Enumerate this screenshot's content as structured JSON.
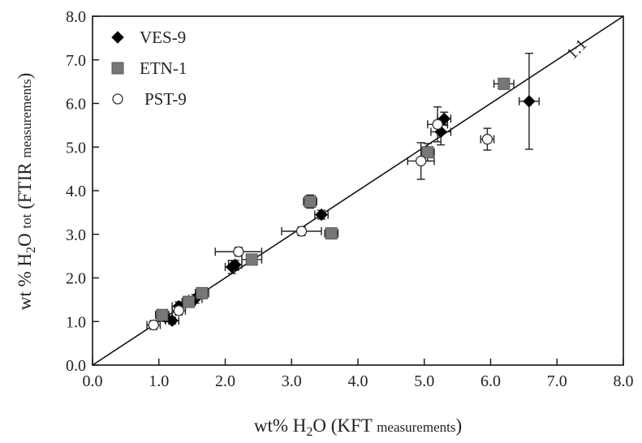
{
  "chart_data": {
    "type": "scatter",
    "xlim": [
      0,
      8
    ],
    "ylim": [
      0,
      8
    ],
    "x_ticks": [
      "0.0",
      "1.0",
      "2.0",
      "3.0",
      "4.0",
      "5.0",
      "6.0",
      "7.0",
      "8.0"
    ],
    "y_ticks": [
      "0.0",
      "1.0",
      "2.0",
      "3.0",
      "4.0",
      "5.0",
      "6.0",
      "7.0",
      "8.0"
    ],
    "xlabel": {
      "pre": "wt% H",
      "sub": "2",
      "post": "O (KFT ",
      "small": "measurements",
      "end": ")"
    },
    "ylabel": {
      "pre": "wt % H",
      "sub": "2",
      "post": "O ",
      "small1": "tot",
      "mid": " (FTIR ",
      "small2": "measurements",
      "end": ")"
    },
    "reference_line": {
      "label": "1:1",
      "from": [
        0,
        0
      ],
      "to": [
        8,
        8
      ]
    },
    "legend_position": "top-left",
    "grid": false,
    "series": [
      {
        "name": "VES-9",
        "marker": "diamond",
        "color": "#000000",
        "points": [
          {
            "x": 1.1,
            "y": 1.1,
            "xerr": 0.1,
            "yerr": 0.1
          },
          {
            "x": 1.2,
            "y": 1.02,
            "xerr": 0.1,
            "yerr": 0.08
          },
          {
            "x": 1.3,
            "y": 1.35,
            "xerr": 0.1,
            "yerr": 0.1
          },
          {
            "x": 1.55,
            "y": 1.52,
            "xerr": 0.1,
            "yerr": 0.1
          },
          {
            "x": 2.1,
            "y": 2.25,
            "xerr": 0.1,
            "yerr": 0.15
          },
          {
            "x": 2.15,
            "y": 2.3,
            "xerr": 0.1,
            "yerr": 0.1
          },
          {
            "x": 3.45,
            "y": 3.45,
            "xerr": 0.1,
            "yerr": 0.1
          },
          {
            "x": 5.25,
            "y": 5.35,
            "xerr": 0.15,
            "yerr": 0.3
          },
          {
            "x": 5.3,
            "y": 5.65,
            "xerr": 0.1,
            "yerr": 0.15
          },
          {
            "x": 6.58,
            "y": 6.05,
            "xerr": 0.15,
            "yerr": 1.1
          }
        ]
      },
      {
        "name": "ETN-1",
        "marker": "square",
        "color": "#777777",
        "points": [
          {
            "x": 1.05,
            "y": 1.15,
            "xerr": 0.1,
            "yerr": 0.1
          },
          {
            "x": 1.45,
            "y": 1.45,
            "xerr": 0.1,
            "yerr": 0.1
          },
          {
            "x": 1.65,
            "y": 1.65,
            "xerr": 0.1,
            "yerr": 0.1
          },
          {
            "x": 2.4,
            "y": 2.42,
            "xerr": 0.15,
            "yerr": 0.1
          },
          {
            "x": 3.28,
            "y": 3.75,
            "xerr": 0.1,
            "yerr": 0.15
          },
          {
            "x": 3.6,
            "y": 3.02,
            "xerr": 0.1,
            "yerr": 0.1
          },
          {
            "x": 5.05,
            "y": 4.88,
            "xerr": 0.1,
            "yerr": 0.2
          },
          {
            "x": 6.2,
            "y": 6.45,
            "xerr": 0.15,
            "yerr": 0.1
          }
        ]
      },
      {
        "name": "PST-9",
        "marker": "circle",
        "color": "#ffffff",
        "points": [
          {
            "x": 0.92,
            "y": 0.92,
            "xerr": 0.1,
            "yerr": 0.1
          },
          {
            "x": 1.3,
            "y": 1.25,
            "xerr": 0.1,
            "yerr": 0.1
          },
          {
            "x": 2.2,
            "y": 2.6,
            "xerr": 0.35,
            "yerr": 0.1
          },
          {
            "x": 3.15,
            "y": 3.07,
            "xerr": 0.3,
            "yerr": 0.1
          },
          {
            "x": 4.95,
            "y": 4.68,
            "xerr": 0.2,
            "yerr": 0.42
          },
          {
            "x": 5.2,
            "y": 5.52,
            "xerr": 0.15,
            "yerr": 0.4
          },
          {
            "x": 5.95,
            "y": 5.18,
            "xerr": 0.1,
            "yerr": 0.25
          }
        ]
      }
    ]
  }
}
